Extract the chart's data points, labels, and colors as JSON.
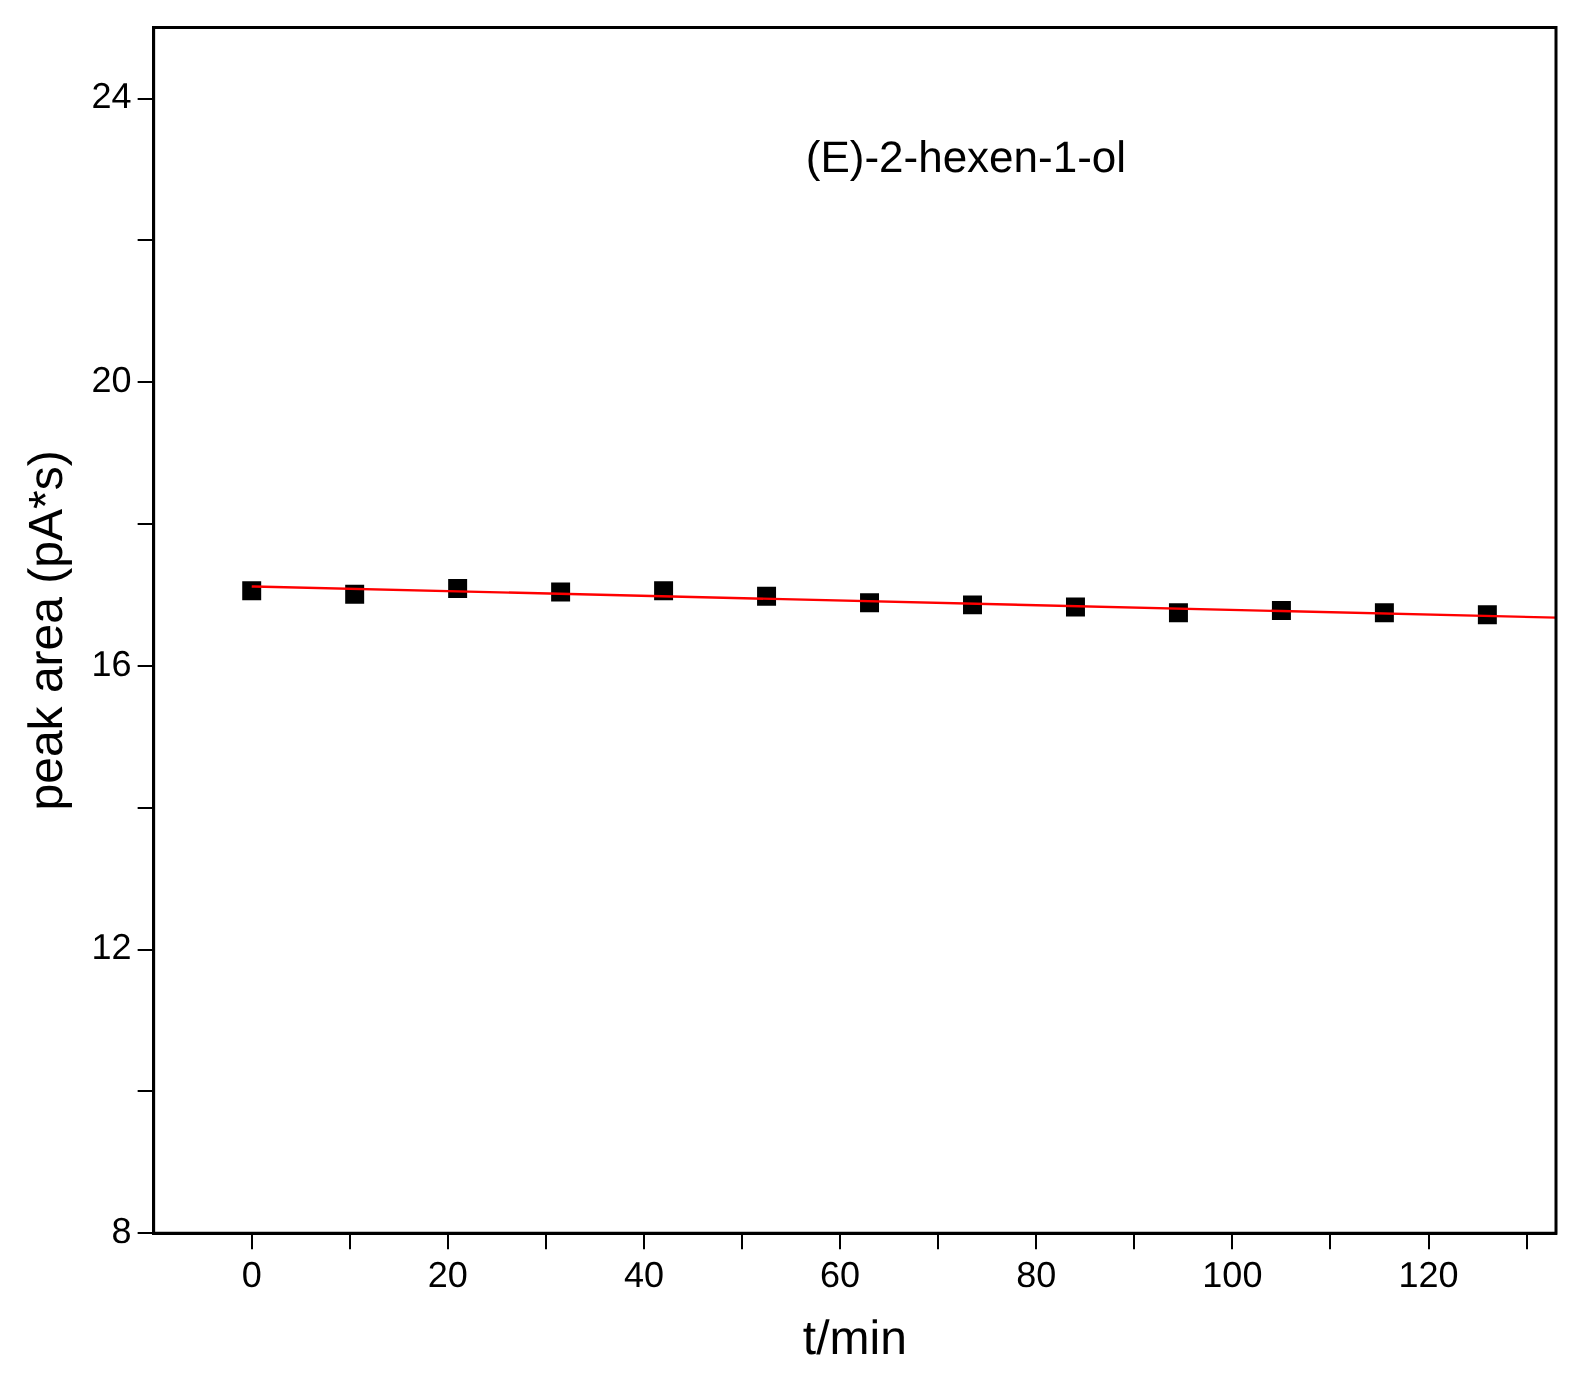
{
  "chart_data": {
    "type": "scatter",
    "xlabel": "t/min",
    "ylabel": "peak area (pA*s)",
    "annotations": [
      "(E)-2-hexen-1-ol"
    ],
    "marker": "square",
    "xlim": [
      -10,
      133
    ],
    "ylim": [
      8,
      25
    ],
    "xticks": [
      0,
      {
        "value": 10,
        "label": null
      },
      20,
      {
        "value": 30,
        "label": null
      },
      40,
      {
        "value": 50,
        "label": null
      },
      60,
      {
        "value": 70,
        "label": null
      },
      80,
      {
        "value": 90,
        "label": null
      },
      100,
      {
        "value": 110,
        "label": null
      },
      120,
      {
        "value": 130,
        "label": null
      }
    ],
    "yticks": [
      8,
      {
        "value": 10,
        "label": null
      },
      12,
      {
        "value": 14,
        "label": null
      },
      16,
      {
        "value": 18,
        "label": null
      },
      20,
      {
        "value": 22,
        "label": null
      },
      24
    ],
    "series": [
      {
        "color": "#000000",
        "x": [
          0,
          10.5,
          21,
          31.5,
          42,
          52.5,
          63,
          73.5,
          84,
          94.5,
          105,
          115.5,
          126
        ],
        "values": [
          17.06,
          17.01,
          17.09,
          17.04,
          17.06,
          16.98,
          16.89,
          16.86,
          16.83,
          16.75,
          16.78,
          16.75,
          16.72
        ]
      },
      {
        "type": "line",
        "marker": "none",
        "color": "#ff0000",
        "x": [
          0,
          133
        ],
        "values": [
          17.12,
          16.68
        ]
      }
    ]
  }
}
